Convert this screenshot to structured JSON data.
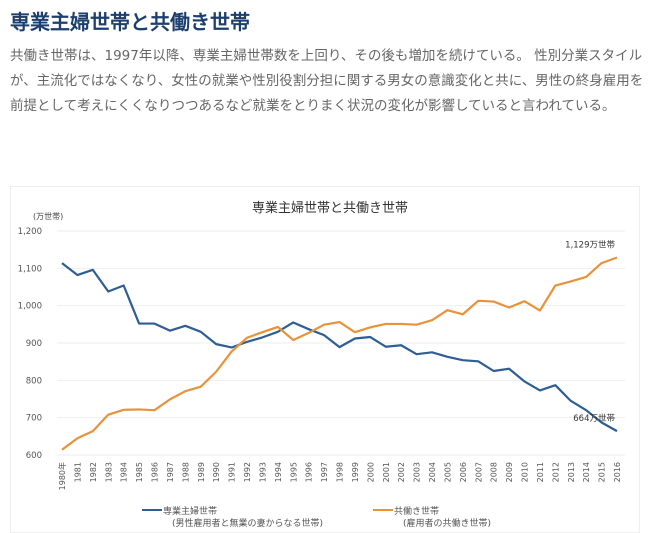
{
  "heading": "専業主婦世帯と共働き世帯",
  "paragraph": "共働き世帯は、1997年以降、専業主婦世帯数を上回り、その後も増加を続けている。 性別分業スタイルが、主流化ではなくなり、女性の就業や性別役割分担に関する男女の意識変化と共に、男性の終身雇用を前提として考えにくくなりつつあるなど就業をとりまく状況の変化が影響していると言われている。",
  "chart_data": {
    "type": "line",
    "title": "専業主婦世帯と共働き世帯",
    "ylabel": "(万世帯)",
    "ylim": [
      600,
      1200
    ],
    "yticks": [
      600,
      700,
      800,
      900,
      1000,
      1100,
      1200
    ],
    "ytick_labels": [
      "600",
      "700",
      "800",
      "900",
      "1,000",
      "1,100",
      "1,200"
    ],
    "x": [
      "1980年",
      "1981",
      "1982",
      "1983",
      "1984",
      "1985",
      "1986",
      "1987",
      "1988",
      "1989",
      "1990",
      "1991",
      "1992",
      "1993",
      "1994",
      "1995",
      "1996",
      "1997",
      "1998",
      "1999",
      "2000",
      "2001",
      "2002",
      "2003",
      "2004",
      "2005",
      "2006",
      "2007",
      "2008",
      "2009",
      "2010",
      "2011",
      "2012",
      "2013",
      "2014",
      "2015",
      "2016"
    ],
    "grid": true,
    "legend_position": "bottom",
    "series": [
      {
        "name": "専業主婦世帯",
        "subname": "(男性雇用者と無業の妻からなる世帯)",
        "color": "#2e5e93",
        "values": [
          1114,
          1082,
          1096,
          1038,
          1054,
          952,
          952,
          933,
          946,
          930,
          897,
          888,
          903,
          915,
          930,
          955,
          937,
          921,
          889,
          912,
          916,
          890,
          894,
          870,
          875,
          863,
          854,
          851,
          825,
          831,
          797,
          773,
          787,
          745,
          720,
          687,
          664
        ],
        "end_label": "664万世帯"
      },
      {
        "name": "共働き世帯",
        "subname": "(雇用者の共働き世帯)",
        "color": "#e8923a",
        "values": [
          614,
          645,
          664,
          708,
          721,
          722,
          720,
          749,
          771,
          783,
          823,
          877,
          914,
          929,
          943,
          908,
          927,
          949,
          956,
          929,
          942,
          951,
          951,
          949,
          961,
          988,
          977,
          1013,
          1011,
          995,
          1012,
          987,
          1054,
          1065,
          1077,
          1114,
          1129
        ],
        "end_label": "1,129万世帯"
      }
    ]
  }
}
